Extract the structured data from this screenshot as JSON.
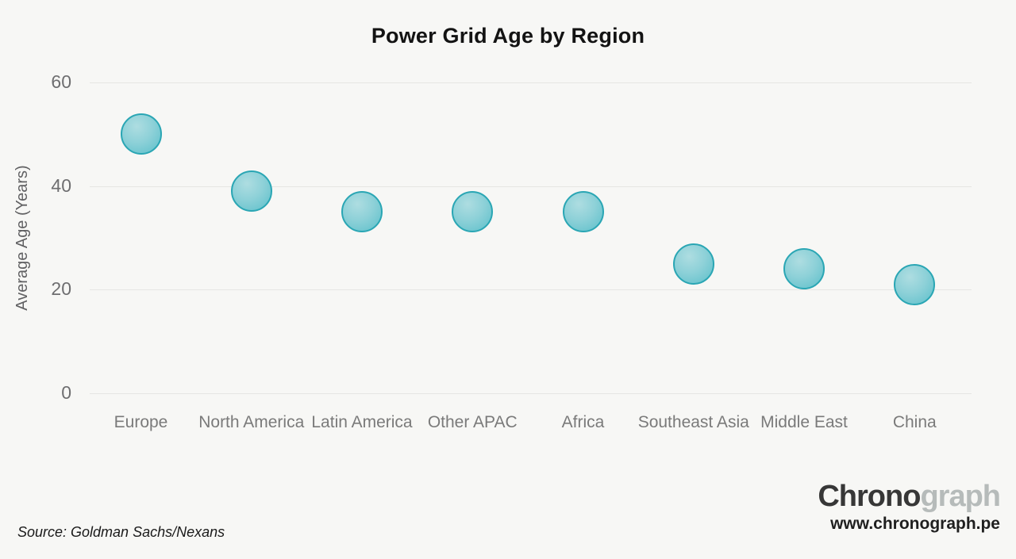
{
  "chart_data": {
    "type": "scatter",
    "title": "Power Grid Age by Region",
    "categories": [
      "Europe",
      "North America",
      "Latin America",
      "Other APAC",
      "Africa",
      "Southeast Asia",
      "Middle East",
      "China"
    ],
    "values": [
      50,
      39,
      35,
      35,
      35,
      25,
      24,
      21
    ],
    "xlabel": "",
    "ylabel": "Average Age (Years)",
    "ylim": [
      0,
      60
    ],
    "yticks": [
      0,
      20,
      40,
      60
    ],
    "grid": "horizontal",
    "legend_position": "none",
    "marker": {
      "shape": "circle",
      "fill_light": "#aedde1",
      "fill_dark": "#5cbfca",
      "border_color": "#2aa6b4"
    }
  },
  "footer": {
    "source": "Source: Goldman Sachs/Nexans",
    "brand_primary": "Chrono",
    "brand_secondary": "graph",
    "website": "www.chronograph.pe"
  },
  "colors": {
    "background": "#f7f7f5",
    "accent_teal": "#2aa6b4",
    "gridline": "#e6e6e3",
    "title_text": "#131313",
    "tick_text": "#7a7a7a"
  }
}
